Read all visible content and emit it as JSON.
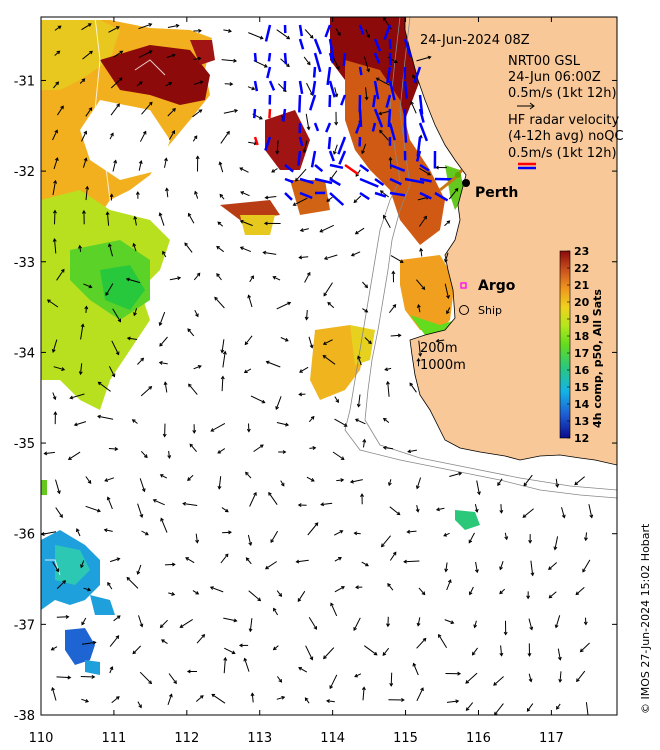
{
  "map": {
    "lon_ticks": [
      "110",
      "111",
      "112",
      "113",
      "114",
      "115",
      "116",
      "117"
    ],
    "lat_ticks": [
      "-31",
      "-32",
      "-33",
      "-34",
      "-35",
      "-36",
      "-37",
      "-38"
    ],
    "lon_range": [
      110,
      117.9
    ],
    "lat_range": [
      -30.3,
      -38
    ],
    "date_label": "24-Jun-2024 08Z",
    "legend_lines": [
      "NRT00 GSL",
      "24-Jun 06:00Z",
      "0.5m/s (1kt 12h)"
    ],
    "hf_lines": [
      "HF radar velocity",
      "(4-12h avg) noQC",
      "0.5m/s (1kt 12h)"
    ],
    "place_labels": {
      "perth": "Perth",
      "argo": "Argo",
      "ship": "Ship"
    },
    "contour_labels": [
      "200m",
      "1000m"
    ],
    "credit": "© IMOS 27-Jun-2024 15:02 Hobart"
  },
  "colorbar": {
    "ticks": [
      "23",
      "22",
      "21",
      "20",
      "19",
      "18",
      "17",
      "16",
      "15",
      "14",
      "13",
      "12"
    ],
    "label": "4h comp, p50, All Sats"
  },
  "colors": {
    "land": "#f8c898",
    "arrow": "#000000",
    "hf_red": "#ff0000",
    "hf_blue": "#0000ff",
    "argo": "#ff00ff"
  }
}
